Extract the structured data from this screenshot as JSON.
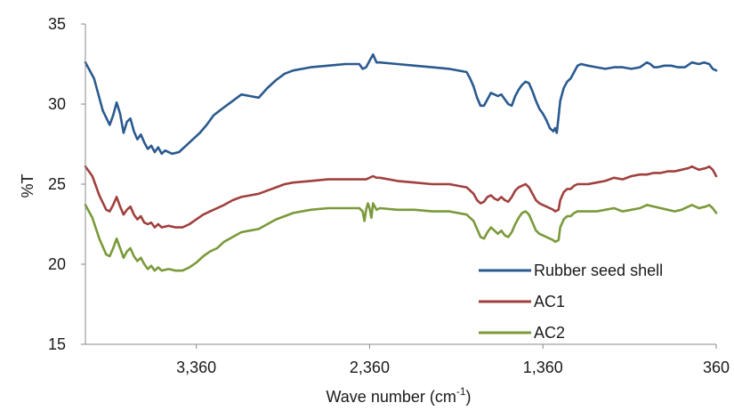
{
  "chart_data": {
    "type": "line",
    "title": "",
    "xlabel": "Wave number (cm",
    "xlabel_sup": "-1",
    "xlabel_end": ")",
    "ylabel": "%T",
    "xlim": [
      4000,
      360
    ],
    "ylim": [
      15,
      35
    ],
    "x_ticks": [
      3360,
      2360,
      1360,
      360
    ],
    "x_tick_labels": [
      "3,360",
      "2,360",
      "1,360",
      "360"
    ],
    "y_ticks": [
      15,
      20,
      25,
      30,
      35
    ],
    "y_tick_labels": [
      "15",
      "20",
      "25",
      "30",
      "35"
    ],
    "grid": false,
    "legend_position": "bottom-right",
    "series": [
      {
        "name": "Rubber seed shell",
        "color": "#2a5a8f",
        "points": [
          [
            4000,
            32.6
          ],
          [
            3950,
            31.6
          ],
          [
            3900,
            29.6
          ],
          [
            3860,
            28.7
          ],
          [
            3840,
            29.3
          ],
          [
            3820,
            30.1
          ],
          [
            3800,
            29.4
          ],
          [
            3780,
            28.2
          ],
          [
            3760,
            28.9
          ],
          [
            3740,
            29.1
          ],
          [
            3720,
            28.3
          ],
          [
            3700,
            27.8
          ],
          [
            3680,
            28.1
          ],
          [
            3660,
            27.6
          ],
          [
            3640,
            27.2
          ],
          [
            3620,
            27.4
          ],
          [
            3600,
            27.0
          ],
          [
            3580,
            27.3
          ],
          [
            3560,
            26.9
          ],
          [
            3540,
            27.1
          ],
          [
            3500,
            26.9
          ],
          [
            3460,
            27.0
          ],
          [
            3420,
            27.4
          ],
          [
            3380,
            27.8
          ],
          [
            3340,
            28.2
          ],
          [
            3300,
            28.7
          ],
          [
            3260,
            29.3
          ],
          [
            3200,
            29.8
          ],
          [
            3150,
            30.2
          ],
          [
            3100,
            30.6
          ],
          [
            3050,
            30.5
          ],
          [
            3000,
            30.4
          ],
          [
            2950,
            31.0
          ],
          [
            2900,
            31.5
          ],
          [
            2850,
            31.9
          ],
          [
            2800,
            32.1
          ],
          [
            2700,
            32.3
          ],
          [
            2600,
            32.4
          ],
          [
            2500,
            32.5
          ],
          [
            2420,
            32.5
          ],
          [
            2400,
            32.2
          ],
          [
            2380,
            32.3
          ],
          [
            2360,
            32.7
          ],
          [
            2340,
            33.1
          ],
          [
            2320,
            32.6
          ],
          [
            2300,
            32.6
          ],
          [
            2200,
            32.5
          ],
          [
            2100,
            32.4
          ],
          [
            2000,
            32.3
          ],
          [
            1900,
            32.2
          ],
          [
            1800,
            32.0
          ],
          [
            1780,
            31.6
          ],
          [
            1760,
            31.1
          ],
          [
            1740,
            30.4
          ],
          [
            1720,
            29.9
          ],
          [
            1700,
            29.9
          ],
          [
            1680,
            30.3
          ],
          [
            1660,
            30.7
          ],
          [
            1640,
            30.6
          ],
          [
            1620,
            30.5
          ],
          [
            1600,
            30.6
          ],
          [
            1580,
            30.3
          ],
          [
            1560,
            30.0
          ],
          [
            1540,
            29.9
          ],
          [
            1520,
            30.5
          ],
          [
            1500,
            30.9
          ],
          [
            1480,
            31.2
          ],
          [
            1460,
            31.4
          ],
          [
            1440,
            31.3
          ],
          [
            1420,
            30.8
          ],
          [
            1400,
            30.2
          ],
          [
            1380,
            29.7
          ],
          [
            1360,
            29.4
          ],
          [
            1340,
            29.0
          ],
          [
            1320,
            28.5
          ],
          [
            1300,
            28.3
          ],
          [
            1290,
            28.5
          ],
          [
            1280,
            28.2
          ],
          [
            1270,
            29.2
          ],
          [
            1260,
            30.2
          ],
          [
            1240,
            31.0
          ],
          [
            1220,
            31.4
          ],
          [
            1200,
            31.6
          ],
          [
            1180,
            32.0
          ],
          [
            1160,
            32.4
          ],
          [
            1140,
            32.5
          ],
          [
            1100,
            32.4
          ],
          [
            1050,
            32.3
          ],
          [
            1000,
            32.2
          ],
          [
            950,
            32.3
          ],
          [
            900,
            32.3
          ],
          [
            850,
            32.2
          ],
          [
            800,
            32.3
          ],
          [
            760,
            32.6
          ],
          [
            740,
            32.5
          ],
          [
            720,
            32.3
          ],
          [
            700,
            32.3
          ],
          [
            660,
            32.4
          ],
          [
            620,
            32.4
          ],
          [
            580,
            32.3
          ],
          [
            540,
            32.3
          ],
          [
            500,
            32.6
          ],
          [
            460,
            32.5
          ],
          [
            430,
            32.6
          ],
          [
            400,
            32.5
          ],
          [
            380,
            32.2
          ],
          [
            360,
            32.1
          ]
        ]
      },
      {
        "name": "AC1",
        "color": "#a0403e",
        "points": [
          [
            4000,
            26.1
          ],
          [
            3960,
            25.5
          ],
          [
            3920,
            24.3
          ],
          [
            3880,
            23.4
          ],
          [
            3860,
            23.3
          ],
          [
            3840,
            23.7
          ],
          [
            3820,
            24.2
          ],
          [
            3800,
            23.6
          ],
          [
            3780,
            23.1
          ],
          [
            3760,
            23.4
          ],
          [
            3740,
            23.6
          ],
          [
            3720,
            23.1
          ],
          [
            3700,
            22.8
          ],
          [
            3680,
            23.0
          ],
          [
            3660,
            22.6
          ],
          [
            3640,
            22.5
          ],
          [
            3620,
            22.6
          ],
          [
            3600,
            22.3
          ],
          [
            3580,
            22.5
          ],
          [
            3560,
            22.3
          ],
          [
            3520,
            22.4
          ],
          [
            3480,
            22.3
          ],
          [
            3440,
            22.3
          ],
          [
            3400,
            22.5
          ],
          [
            3360,
            22.8
          ],
          [
            3320,
            23.1
          ],
          [
            3280,
            23.3
          ],
          [
            3240,
            23.5
          ],
          [
            3200,
            23.7
          ],
          [
            3150,
            24.0
          ],
          [
            3100,
            24.2
          ],
          [
            3050,
            24.3
          ],
          [
            3000,
            24.4
          ],
          [
            2950,
            24.6
          ],
          [
            2900,
            24.8
          ],
          [
            2850,
            25.0
          ],
          [
            2800,
            25.1
          ],
          [
            2700,
            25.2
          ],
          [
            2600,
            25.3
          ],
          [
            2500,
            25.3
          ],
          [
            2400,
            25.3
          ],
          [
            2380,
            25.3
          ],
          [
            2360,
            25.4
          ],
          [
            2340,
            25.5
          ],
          [
            2320,
            25.4
          ],
          [
            2300,
            25.4
          ],
          [
            2200,
            25.2
          ],
          [
            2100,
            25.1
          ],
          [
            2000,
            25.0
          ],
          [
            1900,
            25.0
          ],
          [
            1800,
            24.8
          ],
          [
            1760,
            24.4
          ],
          [
            1740,
            24.0
          ],
          [
            1720,
            23.8
          ],
          [
            1700,
            23.9
          ],
          [
            1680,
            24.2
          ],
          [
            1660,
            24.3
          ],
          [
            1640,
            24.1
          ],
          [
            1620,
            24.0
          ],
          [
            1600,
            24.2
          ],
          [
            1580,
            24.0
          ],
          [
            1560,
            23.9
          ],
          [
            1540,
            24.2
          ],
          [
            1520,
            24.6
          ],
          [
            1500,
            24.8
          ],
          [
            1480,
            24.9
          ],
          [
            1460,
            25.0
          ],
          [
            1440,
            24.8
          ],
          [
            1420,
            24.4
          ],
          [
            1400,
            24.0
          ],
          [
            1380,
            23.8
          ],
          [
            1360,
            23.7
          ],
          [
            1340,
            23.6
          ],
          [
            1320,
            23.5
          ],
          [
            1300,
            23.4
          ],
          [
            1290,
            23.3
          ],
          [
            1270,
            23.4
          ],
          [
            1260,
            24.0
          ],
          [
            1240,
            24.5
          ],
          [
            1220,
            24.7
          ],
          [
            1200,
            24.7
          ],
          [
            1180,
            24.9
          ],
          [
            1160,
            25.0
          ],
          [
            1100,
            25.0
          ],
          [
            1050,
            25.1
          ],
          [
            1000,
            25.2
          ],
          [
            950,
            25.4
          ],
          [
            900,
            25.3
          ],
          [
            850,
            25.5
          ],
          [
            800,
            25.6
          ],
          [
            760,
            25.6
          ],
          [
            720,
            25.7
          ],
          [
            680,
            25.7
          ],
          [
            640,
            25.8
          ],
          [
            600,
            25.8
          ],
          [
            560,
            25.9
          ],
          [
            520,
            26.0
          ],
          [
            500,
            26.1
          ],
          [
            460,
            25.9
          ],
          [
            420,
            26.0
          ],
          [
            400,
            26.1
          ],
          [
            380,
            25.9
          ],
          [
            360,
            25.5
          ]
        ]
      },
      {
        "name": "AC2",
        "color": "#7a9a3a",
        "points": [
          [
            4000,
            23.7
          ],
          [
            3960,
            22.9
          ],
          [
            3920,
            21.6
          ],
          [
            3880,
            20.6
          ],
          [
            3860,
            20.5
          ],
          [
            3840,
            21.0
          ],
          [
            3820,
            21.6
          ],
          [
            3800,
            21.0
          ],
          [
            3780,
            20.4
          ],
          [
            3760,
            20.8
          ],
          [
            3740,
            21.0
          ],
          [
            3720,
            20.5
          ],
          [
            3700,
            20.2
          ],
          [
            3680,
            20.4
          ],
          [
            3660,
            20.0
          ],
          [
            3640,
            19.7
          ],
          [
            3620,
            19.9
          ],
          [
            3600,
            19.6
          ],
          [
            3580,
            19.8
          ],
          [
            3560,
            19.6
          ],
          [
            3520,
            19.7
          ],
          [
            3480,
            19.6
          ],
          [
            3440,
            19.6
          ],
          [
            3400,
            19.8
          ],
          [
            3360,
            20.1
          ],
          [
            3320,
            20.5
          ],
          [
            3280,
            20.8
          ],
          [
            3240,
            21.0
          ],
          [
            3200,
            21.4
          ],
          [
            3150,
            21.7
          ],
          [
            3100,
            22.0
          ],
          [
            3050,
            22.1
          ],
          [
            3000,
            22.2
          ],
          [
            2950,
            22.5
          ],
          [
            2900,
            22.8
          ],
          [
            2850,
            23.0
          ],
          [
            2800,
            23.2
          ],
          [
            2700,
            23.4
          ],
          [
            2600,
            23.5
          ],
          [
            2500,
            23.5
          ],
          [
            2420,
            23.5
          ],
          [
            2400,
            23.3
          ],
          [
            2390,
            22.7
          ],
          [
            2380,
            23.4
          ],
          [
            2370,
            23.8
          ],
          [
            2360,
            23.5
          ],
          [
            2350,
            22.9
          ],
          [
            2340,
            23.8
          ],
          [
            2320,
            23.4
          ],
          [
            2300,
            23.5
          ],
          [
            2200,
            23.4
          ],
          [
            2100,
            23.4
          ],
          [
            2000,
            23.3
          ],
          [
            1900,
            23.3
          ],
          [
            1800,
            23.1
          ],
          [
            1760,
            22.7
          ],
          [
            1740,
            22.2
          ],
          [
            1720,
            21.7
          ],
          [
            1700,
            21.6
          ],
          [
            1680,
            22.0
          ],
          [
            1660,
            22.3
          ],
          [
            1640,
            22.1
          ],
          [
            1620,
            21.9
          ],
          [
            1600,
            22.1
          ],
          [
            1580,
            21.8
          ],
          [
            1560,
            21.7
          ],
          [
            1540,
            22.0
          ],
          [
            1520,
            22.5
          ],
          [
            1500,
            22.9
          ],
          [
            1480,
            23.2
          ],
          [
            1460,
            23.3
          ],
          [
            1440,
            23.1
          ],
          [
            1420,
            22.6
          ],
          [
            1400,
            22.1
          ],
          [
            1380,
            21.9
          ],
          [
            1360,
            21.8
          ],
          [
            1340,
            21.7
          ],
          [
            1320,
            21.6
          ],
          [
            1300,
            21.5
          ],
          [
            1290,
            21.4
          ],
          [
            1270,
            21.5
          ],
          [
            1260,
            22.3
          ],
          [
            1240,
            22.8
          ],
          [
            1220,
            23.0
          ],
          [
            1200,
            23.0
          ],
          [
            1180,
            23.2
          ],
          [
            1160,
            23.3
          ],
          [
            1100,
            23.3
          ],
          [
            1050,
            23.3
          ],
          [
            1000,
            23.4
          ],
          [
            950,
            23.5
          ],
          [
            900,
            23.3
          ],
          [
            850,
            23.4
          ],
          [
            800,
            23.5
          ],
          [
            760,
            23.7
          ],
          [
            720,
            23.6
          ],
          [
            680,
            23.5
          ],
          [
            640,
            23.4
          ],
          [
            600,
            23.3
          ],
          [
            560,
            23.4
          ],
          [
            520,
            23.6
          ],
          [
            500,
            23.7
          ],
          [
            460,
            23.5
          ],
          [
            420,
            23.6
          ],
          [
            400,
            23.7
          ],
          [
            380,
            23.5
          ],
          [
            360,
            23.2
          ]
        ]
      }
    ]
  }
}
